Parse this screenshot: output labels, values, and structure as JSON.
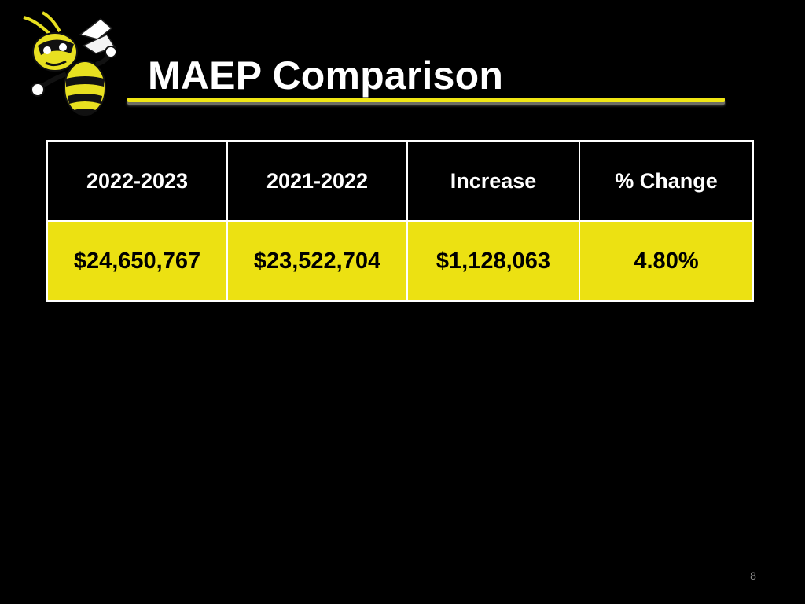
{
  "slide": {
    "title": "MAEP Comparison",
    "page_number": "8",
    "mascot": "yellow-jacket-mascot-logo"
  },
  "table": {
    "headers": [
      "2022-2023",
      "2021-2022",
      "Increase",
      "% Change"
    ],
    "row": [
      "$24,650,767",
      "$23,522,704",
      "$1,128,063",
      "4.80%"
    ]
  },
  "colors": {
    "background": "#000000",
    "accent_yellow": "#ece112",
    "title_text": "#ffffff"
  }
}
